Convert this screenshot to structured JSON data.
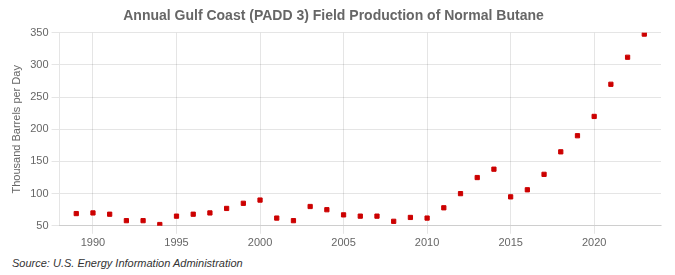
{
  "chart_data": {
    "type": "scatter",
    "title": "Annual Gulf Coast (PADD 3) Field Production of Normal Butane",
    "ylabel": "Thousand Barrels per Day",
    "source": "Source: U.S. Energy Information Administration",
    "x": [
      1989,
      1990,
      1991,
      1992,
      1993,
      1994,
      1995,
      1996,
      1997,
      1998,
      1999,
      2000,
      2001,
      2002,
      2003,
      2004,
      2005,
      2006,
      2007,
      2008,
      2009,
      2010,
      2011,
      2012,
      2013,
      2014,
      2015,
      2016,
      2017,
      2018,
      2019,
      2020,
      2021,
      2022,
      2023
    ],
    "values": [
      69,
      70,
      68,
      58,
      58,
      52,
      65,
      68,
      70,
      77,
      85,
      90,
      62,
      58,
      80,
      75,
      67,
      65,
      65,
      57,
      63,
      62,
      78,
      100,
      125,
      138,
      95,
      106,
      130,
      165,
      190,
      220,
      270,
      312,
      348
    ],
    "color": "#cc0000",
    "marker": "square",
    "xlim": [
      1988,
      2024
    ],
    "xticks": [
      1990,
      1995,
      2000,
      2005,
      2010,
      2015,
      2020
    ],
    "ylim": [
      50,
      350
    ],
    "yticks": [
      50,
      100,
      150,
      200,
      250,
      300,
      350
    ],
    "grid": true
  }
}
